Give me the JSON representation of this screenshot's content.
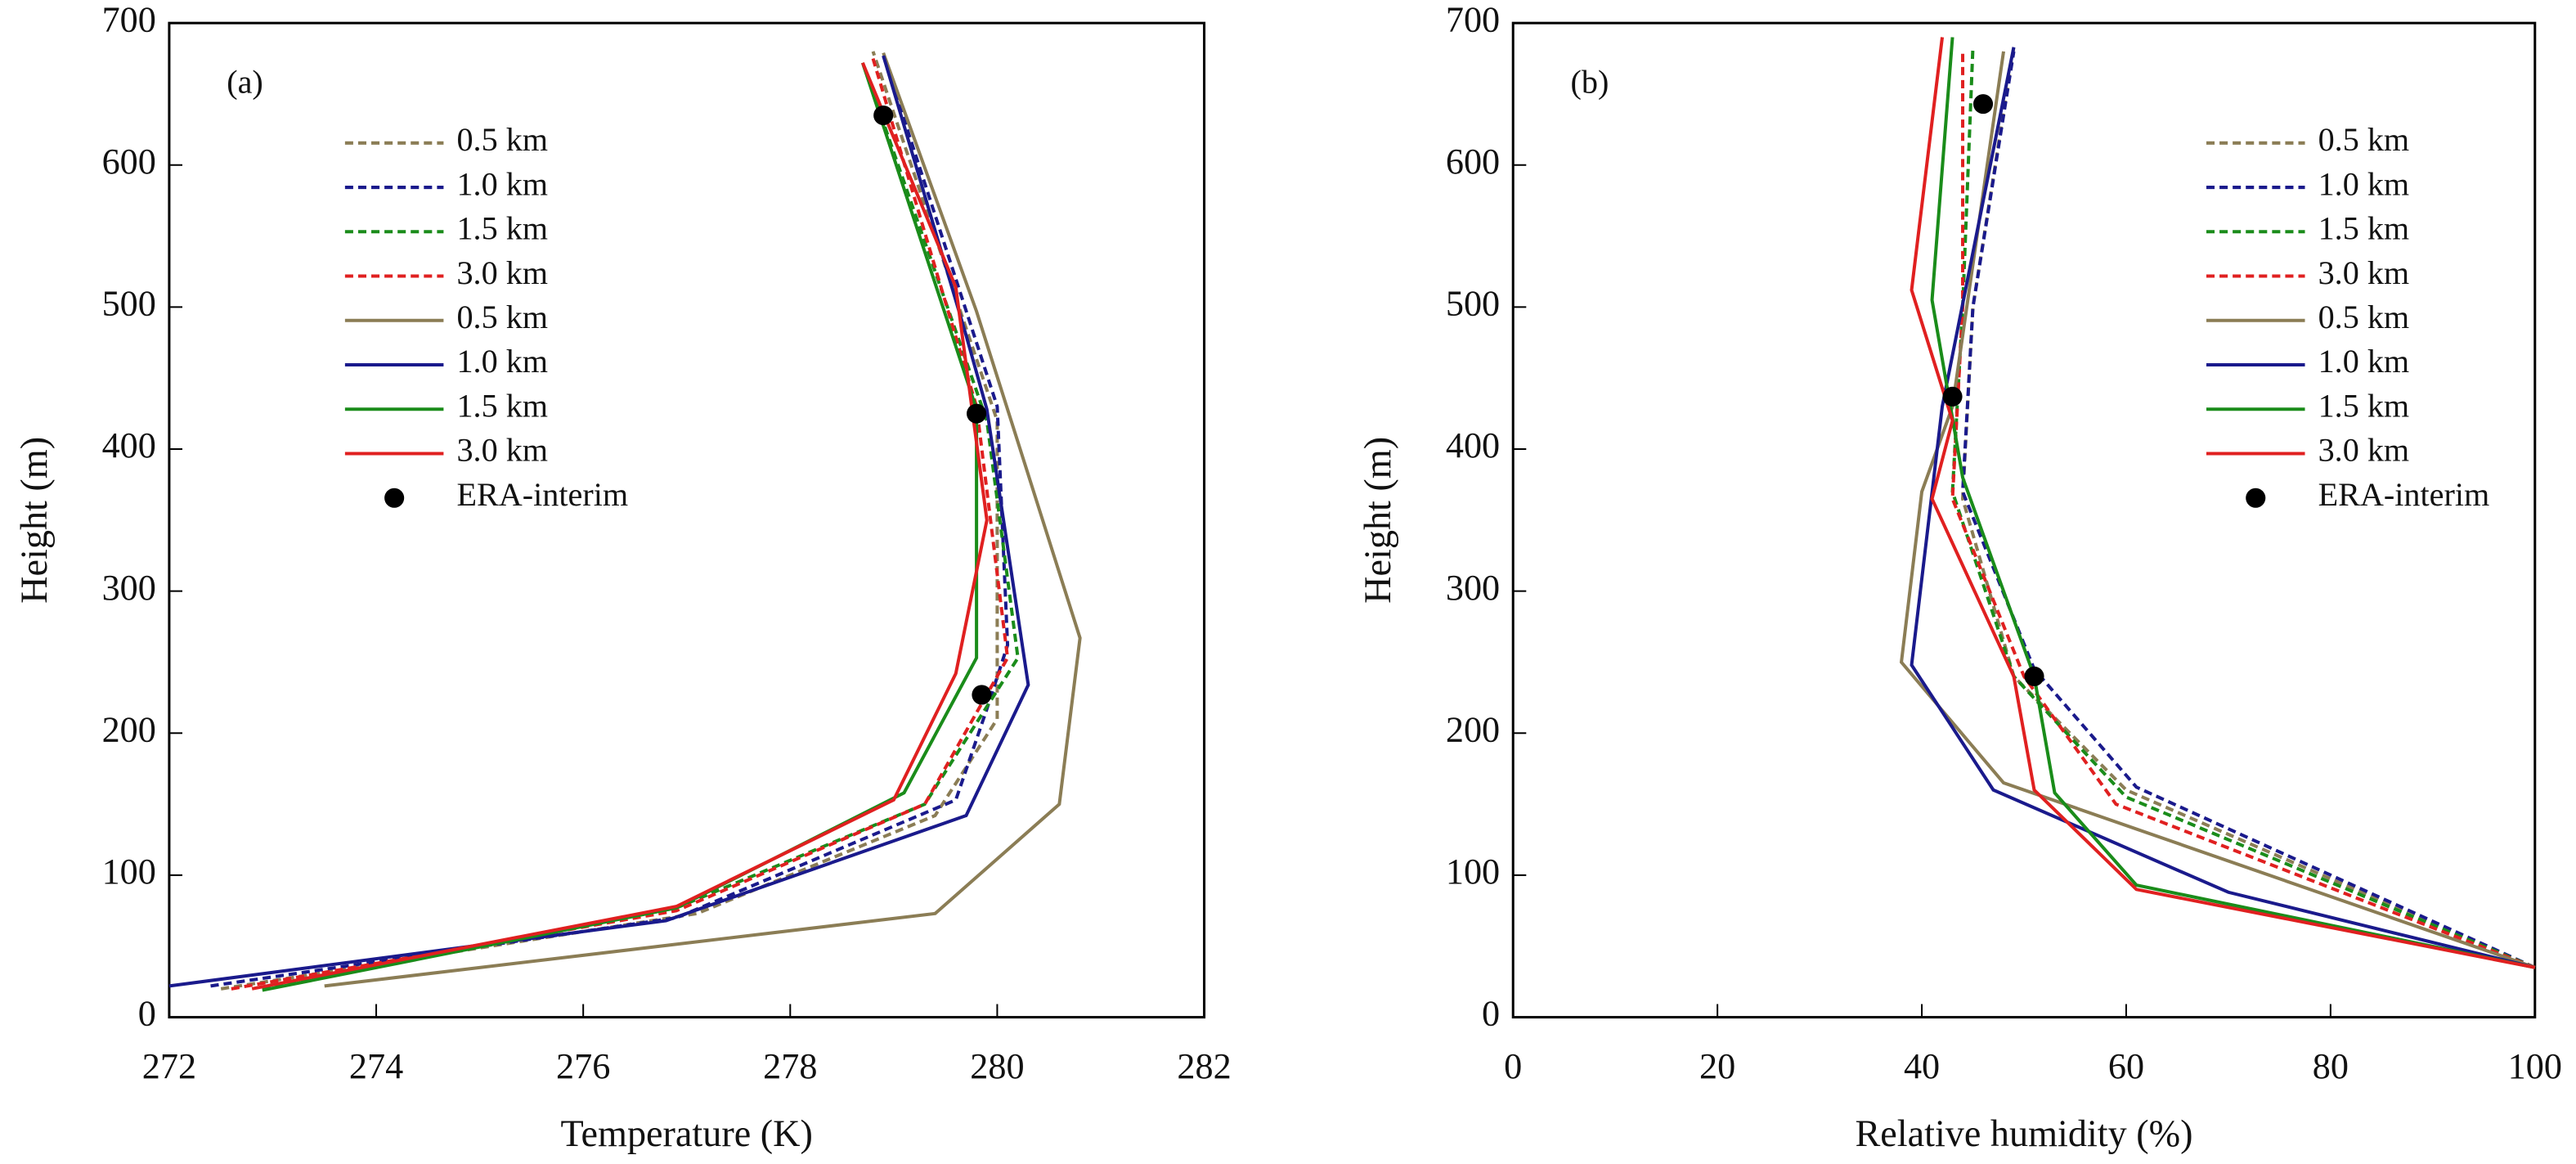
{
  "chart_data": [
    {
      "type": "line",
      "annotation": "(a)",
      "x_label": "Temperature (K)",
      "y_label": "Height (m)",
      "xlim": [
        272,
        282
      ],
      "xticks": [
        272,
        274,
        276,
        278,
        280,
        282
      ],
      "ylim": [
        0,
        700
      ],
      "yticks": [
        0,
        100,
        200,
        300,
        400,
        500,
        600,
        700
      ],
      "legend": "upper left",
      "series": [
        {
          "name": "0.5 km",
          "color": "#8b7d55",
          "style": "dashed",
          "x": [
            272.5,
            277.1,
            279.4,
            280.0,
            280.0,
            280.0,
            278.8
          ],
          "values": [
            20,
            73,
            142,
            210,
            270,
            420,
            680
          ]
        },
        {
          "name": "1.0 km",
          "color": "#1a1a8c",
          "style": "dashed",
          "x": [
            272.4,
            276.9,
            279.6,
            279.9,
            280.1,
            280.0,
            278.9
          ],
          "values": [
            22,
            70,
            153,
            217,
            262,
            430,
            677
          ]
        },
        {
          "name": "1.5 km",
          "color": "#1a8c1a",
          "style": "dashed",
          "x": [
            272.9,
            276.9,
            279.3,
            280.2,
            279.9,
            278.7
          ],
          "values": [
            20,
            77,
            150,
            253,
            420,
            672
          ]
        },
        {
          "name": "3.0 km",
          "color": "#e02020",
          "style": "dashed",
          "x": [
            272.6,
            276.9,
            279.3,
            280.1,
            279.8,
            278.8
          ],
          "values": [
            20,
            75,
            150,
            253,
            430,
            675
          ]
        },
        {
          "name": "0.5 km",
          "color": "#8b7d55",
          "style": "solid",
          "x": [
            273.5,
            279.4,
            280.6,
            280.8,
            279.8,
            278.9
          ],
          "values": [
            22,
            73,
            150,
            267,
            497,
            679
          ]
        },
        {
          "name": "1.0 km",
          "color": "#1a1a8c",
          "style": "solid",
          "x": [
            272.0,
            276.8,
            279.7,
            280.3,
            279.9,
            279.7,
            278.9
          ],
          "values": [
            22,
            68,
            142,
            234,
            428,
            480,
            677
          ]
        },
        {
          "name": "1.5 km",
          "color": "#1a8c1a",
          "style": "solid",
          "x": [
            272.9,
            276.9,
            279.1,
            279.8,
            279.8,
            278.7
          ],
          "values": [
            19,
            77,
            158,
            253,
            428,
            672
          ]
        },
        {
          "name": "3.0 km",
          "color": "#e02020",
          "style": "solid",
          "x": [
            272.8,
            276.9,
            279.0,
            279.6,
            279.9,
            279.6,
            278.7
          ],
          "values": [
            20,
            78,
            153,
            242,
            350,
            514,
            672
          ]
        },
        {
          "name": "ERA-interim",
          "color": "#000000",
          "style": "marker",
          "x": [
            278.9,
            279.8,
            279.85
          ],
          "values": [
            635,
            425,
            227
          ]
        }
      ]
    },
    {
      "type": "line",
      "annotation": "(b)",
      "x_label": "Relative humidity (%)",
      "y_label": "Height (m)",
      "xlim": [
        0,
        100
      ],
      "xticks": [
        0,
        20,
        40,
        60,
        80,
        100
      ],
      "ylim": [
        0,
        700
      ],
      "yticks": [
        0,
        100,
        200,
        300,
        400,
        500,
        600,
        700
      ],
      "legend": "upper right",
      "series": [
        {
          "name": "0.5 km",
          "color": "#8b7d55",
          "style": "dashed",
          "x": [
            100,
            60,
            49,
            44,
            45,
            49
          ],
          "values": [
            35,
            160,
            240,
            365,
            500,
            683
          ]
        },
        {
          "name": "1.0 km",
          "color": "#1a1a8c",
          "style": "dashed",
          "x": [
            100,
            61,
            51,
            44,
            45,
            49
          ],
          "values": [
            35,
            162,
            245,
            370,
            500,
            680
          ]
        },
        {
          "name": "1.5 km",
          "color": "#1a8c1a",
          "style": "dashed",
          "x": [
            100,
            60,
            49,
            43,
            44,
            45
          ],
          "values": [
            35,
            155,
            240,
            370,
            500,
            683
          ]
        },
        {
          "name": "3.0 km",
          "color": "#e02020",
          "style": "dashed",
          "x": [
            100,
            59,
            50,
            43,
            44,
            44
          ],
          "values": [
            35,
            150,
            240,
            365,
            500,
            680
          ]
        },
        {
          "name": "0.5 km",
          "color": "#8b7d55",
          "style": "solid",
          "x": [
            100,
            48,
            38,
            40,
            43,
            48
          ],
          "values": [
            35,
            165,
            250,
            370,
            430,
            680
          ]
        },
        {
          "name": "1.0 km",
          "color": "#1a1a8c",
          "style": "solid",
          "x": [
            100,
            70,
            47,
            39,
            42,
            49
          ],
          "values": [
            35,
            88,
            160,
            248,
            430,
            683
          ]
        },
        {
          "name": "1.5 km",
          "color": "#1a8c1a",
          "style": "solid",
          "x": [
            100,
            61,
            53,
            51,
            44,
            41,
            43
          ],
          "values": [
            35,
            93,
            158,
            240,
            380,
            505,
            690
          ]
        },
        {
          "name": "3.0 km",
          "color": "#e02020",
          "style": "solid",
          "x": [
            100,
            61,
            51,
            49,
            41,
            43,
            39,
            42
          ],
          "values": [
            35,
            90,
            160,
            240,
            365,
            420,
            512,
            690
          ]
        },
        {
          "name": "ERA-interim",
          "color": "#000000",
          "style": "marker",
          "x": [
            46,
            43,
            51
          ],
          "values": [
            643,
            437,
            240
          ]
        }
      ]
    }
  ]
}
